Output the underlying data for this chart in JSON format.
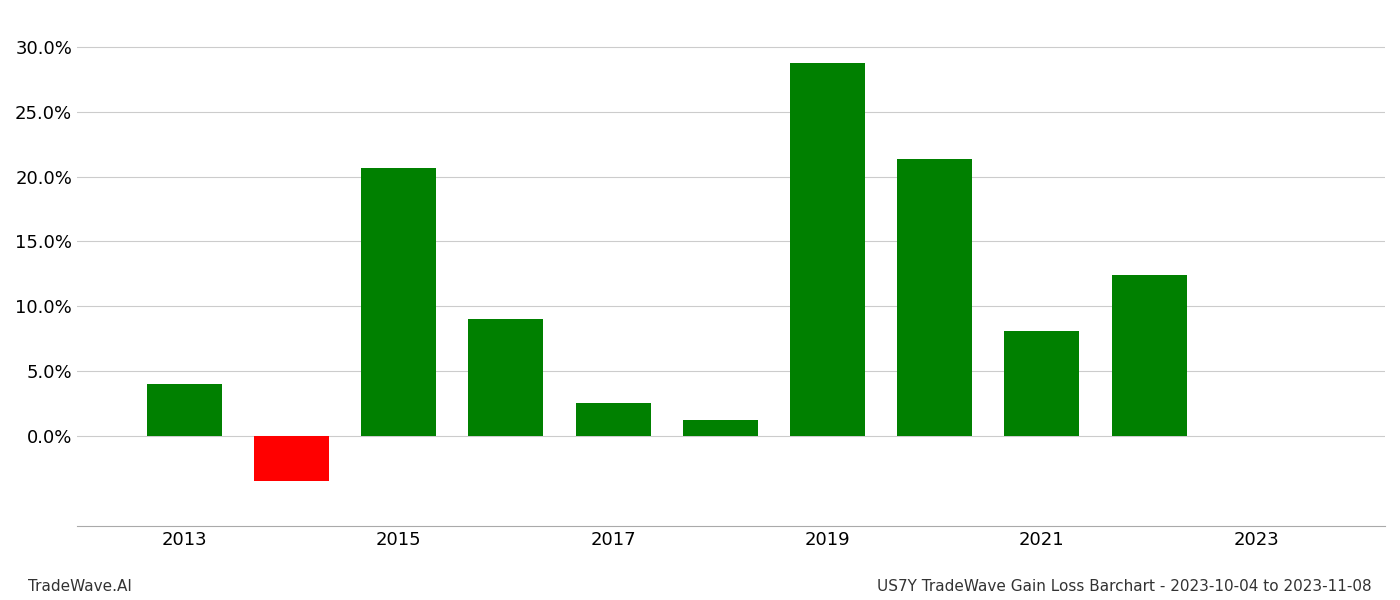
{
  "years": [
    2013,
    2014,
    2015,
    2016,
    2017,
    2018,
    2019,
    2020,
    2021,
    2022
  ],
  "values": [
    0.04,
    -0.035,
    0.207,
    0.09,
    0.025,
    0.012,
    0.288,
    0.214,
    0.081,
    0.124
  ],
  "colors": [
    "#008000",
    "#ff0000",
    "#008000",
    "#008000",
    "#008000",
    "#008000",
    "#008000",
    "#008000",
    "#008000",
    "#008000"
  ],
  "ylim": [
    -0.07,
    0.325
  ],
  "yticks": [
    0.0,
    0.05,
    0.1,
    0.15,
    0.2,
    0.25,
    0.3
  ],
  "xticks": [
    2013,
    2015,
    2017,
    2019,
    2021,
    2023
  ],
  "xlim": [
    2012.0,
    2024.2
  ],
  "footer_left": "TradeWave.AI",
  "footer_right": "US7Y TradeWave Gain Loss Barchart - 2023-10-04 to 2023-11-08",
  "background_color": "#ffffff",
  "grid_color": "#cccccc",
  "bar_width": 0.7,
  "tick_fontsize": 13,
  "footer_fontsize": 11
}
